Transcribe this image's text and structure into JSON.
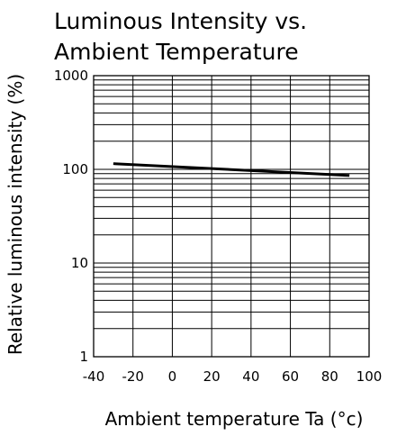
{
  "chart_data": {
    "type": "line",
    "title_lines": [
      "Luminous Intensity vs.",
      "Ambient Temperature"
    ],
    "xlabel": "Ambient temperature Ta (°c)",
    "ylabel": "Relative luminous intensity (%)",
    "x_ticks": [
      -40,
      -20,
      0,
      20,
      40,
      60,
      80,
      100
    ],
    "x_tick_labels": [
      "-40",
      "-20",
      "0",
      "20",
      "40",
      "60",
      "80",
      "100"
    ],
    "xlim": [
      -40,
      100
    ],
    "y_scale": "log",
    "ylim": [
      1,
      1000
    ],
    "y_tick_labels": [
      "1",
      "10",
      "100",
      "1000"
    ],
    "y_tick_values": [
      1,
      10,
      100,
      1000
    ],
    "grid": true,
    "series": [
      {
        "x": [
          -30,
          90
        ],
        "y": [
          115,
          86
        ],
        "color": "#000000"
      }
    ]
  }
}
